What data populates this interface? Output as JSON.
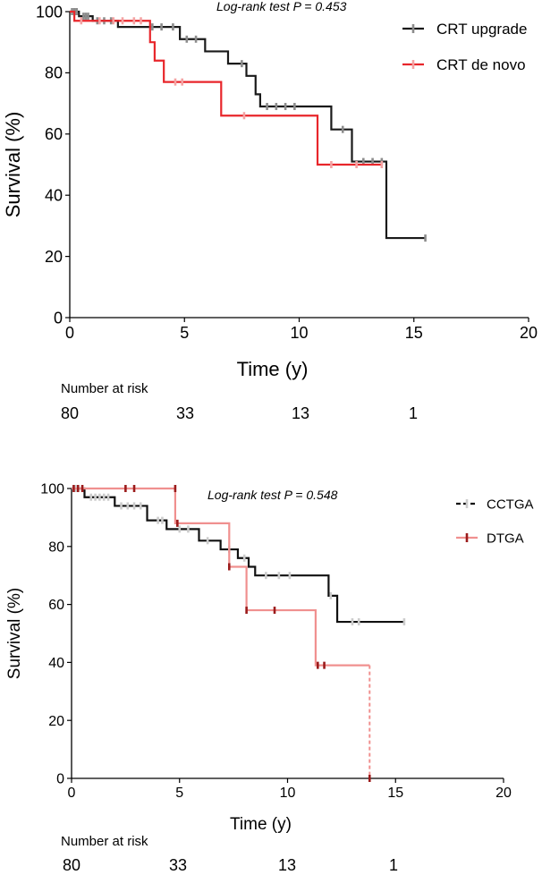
{
  "colors": {
    "top_upgrade": "#1a1a1a",
    "top_upgrade_tick": "#8c8c8c",
    "top_denovo": "#e8262b",
    "top_denovo_tick": "#f4a3a3",
    "bottom_cctga": "#111111",
    "bottom_cctga_tick": "#cccccc",
    "bottom_dtga": "#f0908f",
    "bottom_dtga_tick": "#9b1b1b"
  },
  "chart_data": [
    {
      "type": "line",
      "subtype": "kaplan-meier",
      "annotation": "Log-rank test P = 0.453",
      "xlabel": "Time (y)",
      "ylabel": "Survival (%)",
      "xlim": [
        0,
        20
      ],
      "ylim": [
        0,
        100
      ],
      "xticks": [
        0,
        5,
        10,
        15,
        20
      ],
      "yticks": [
        0,
        20,
        40,
        60,
        80,
        100
      ],
      "legend_position": "top-right",
      "series": [
        {
          "name": "CRT upgrade",
          "color_key": "top_upgrade",
          "tick_color_key": "top_upgrade_tick",
          "steps": [
            [
              0,
              100
            ],
            [
              0.4,
              98.5
            ],
            [
              1.0,
              97
            ],
            [
              2.1,
              95
            ],
            [
              4.8,
              91
            ],
            [
              5.9,
              87
            ],
            [
              6.9,
              83
            ],
            [
              7.7,
              79
            ],
            [
              8.1,
              73
            ],
            [
              8.3,
              69
            ],
            [
              11.4,
              61.5
            ],
            [
              12.3,
              51
            ],
            [
              13.8,
              26
            ],
            [
              15.5,
              26
            ]
          ],
          "censored": [
            [
              0.1,
              100
            ],
            [
              0.2,
              100
            ],
            [
              0.3,
              100
            ],
            [
              0.6,
              98.5
            ],
            [
              0.7,
              98.5
            ],
            [
              0.8,
              98.5
            ],
            [
              1.2,
              97
            ],
            [
              1.5,
              97
            ],
            [
              1.8,
              97
            ],
            [
              3.6,
              95
            ],
            [
              4.0,
              95
            ],
            [
              4.5,
              95
            ],
            [
              5.1,
              91
            ],
            [
              5.5,
              91
            ],
            [
              7.5,
              83
            ],
            [
              8.6,
              69
            ],
            [
              9.0,
              69
            ],
            [
              9.4,
              69
            ],
            [
              9.8,
              69
            ],
            [
              11.9,
              61.5
            ],
            [
              12.8,
              51
            ],
            [
              13.2,
              51
            ],
            [
              13.6,
              51
            ],
            [
              15.5,
              26
            ]
          ]
        },
        {
          "name": "CRT de novo",
          "color_key": "top_denovo",
          "tick_color_key": "top_denovo_tick",
          "steps": [
            [
              0,
              100
            ],
            [
              0.2,
              97
            ],
            [
              3.5,
              90
            ],
            [
              3.7,
              84
            ],
            [
              4.1,
              77
            ],
            [
              6.6,
              66
            ],
            [
              10.8,
              50
            ],
            [
              13.6,
              50
            ]
          ],
          "censored": [
            [
              0.5,
              97
            ],
            [
              1.3,
              97
            ],
            [
              1.9,
              97
            ],
            [
              2.3,
              97
            ],
            [
              2.8,
              97
            ],
            [
              3.1,
              97
            ],
            [
              4.6,
              77
            ],
            [
              4.9,
              77
            ],
            [
              7.6,
              66
            ],
            [
              11.4,
              50
            ],
            [
              12.5,
              50
            ],
            [
              13.6,
              50
            ]
          ]
        }
      ],
      "risk_table": {
        "label": "Number at risk",
        "times": [
          0,
          5,
          10,
          15
        ],
        "values": [
          "80",
          "33",
          "13",
          "1"
        ]
      }
    },
    {
      "type": "line",
      "subtype": "kaplan-meier",
      "annotation": "Log-rank test P = 0.548",
      "xlabel": "Time (y)",
      "ylabel": "Survival (%)",
      "xlim": [
        0,
        20
      ],
      "ylim": [
        0,
        100
      ],
      "xticks": [
        0,
        5,
        10,
        15,
        20
      ],
      "yticks": [
        0,
        20,
        40,
        60,
        80,
        100
      ],
      "legend_position": "top-right",
      "series": [
        {
          "name": "CCTGA",
          "color_key": "bottom_cctga",
          "tick_color_key": "bottom_cctga_tick",
          "dashed_legend": true,
          "steps": [
            [
              0,
              100
            ],
            [
              0.6,
              97
            ],
            [
              2.0,
              94
            ],
            [
              3.5,
              89
            ],
            [
              4.4,
              86
            ],
            [
              5.9,
              82
            ],
            [
              6.9,
              79
            ],
            [
              7.7,
              76
            ],
            [
              8.2,
              73
            ],
            [
              8.5,
              70
            ],
            [
              11.9,
              63
            ],
            [
              12.3,
              54
            ],
            [
              15.4,
              54
            ]
          ],
          "censored": [
            [
              0.2,
              100
            ],
            [
              0.9,
              97
            ],
            [
              1.1,
              97
            ],
            [
              1.3,
              97
            ],
            [
              1.5,
              97
            ],
            [
              1.7,
              97
            ],
            [
              2.3,
              94
            ],
            [
              2.6,
              94
            ],
            [
              2.9,
              94
            ],
            [
              3.2,
              94
            ],
            [
              4.0,
              89
            ],
            [
              4.2,
              89
            ],
            [
              5.0,
              86
            ],
            [
              5.4,
              86
            ],
            [
              6.3,
              82
            ],
            [
              7.3,
              79
            ],
            [
              8.0,
              76
            ],
            [
              9.0,
              70
            ],
            [
              9.6,
              70
            ],
            [
              10.1,
              70
            ],
            [
              12.0,
              63
            ],
            [
              13.0,
              54
            ],
            [
              13.3,
              54
            ],
            [
              15.4,
              54
            ]
          ]
        },
        {
          "name": "DTGA",
          "color_key": "bottom_dtga",
          "tick_color_key": "bottom_dtga_tick",
          "steps": [
            [
              0,
              100
            ],
            [
              4.8,
              88
            ],
            [
              7.3,
              73
            ],
            [
              8.1,
              58
            ],
            [
              11.3,
              39
            ],
            [
              13.8,
              39
            ]
          ],
          "dashed_drop": [
            13.8,
            39,
            0
          ],
          "censored": [
            [
              0.1,
              100
            ],
            [
              0.3,
              100
            ],
            [
              0.5,
              100
            ],
            [
              2.5,
              100
            ],
            [
              2.9,
              100
            ],
            [
              4.8,
              100
            ],
            [
              4.9,
              88
            ],
            [
              7.3,
              73
            ],
            [
              8.1,
              58
            ],
            [
              9.4,
              58
            ],
            [
              11.4,
              39
            ],
            [
              11.7,
              39
            ],
            [
              13.8,
              0
            ]
          ]
        }
      ],
      "risk_table": {
        "label": "Number at risk",
        "times": [
          0,
          5,
          10,
          15
        ],
        "values": [
          "80",
          "33",
          "13",
          "1"
        ]
      }
    }
  ]
}
